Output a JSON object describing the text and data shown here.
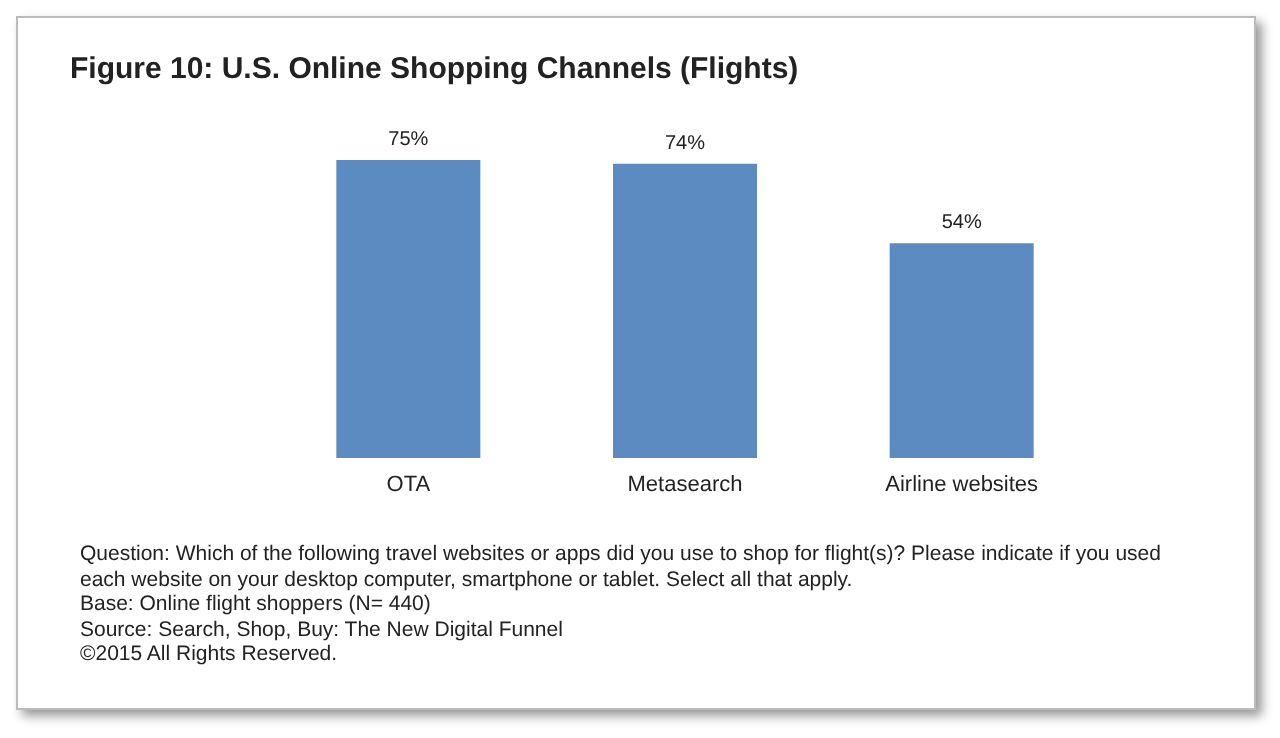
{
  "chart_data": {
    "type": "bar",
    "title": "Figure 10: U.S. Online Shopping Channels (Flights)",
    "categories": [
      "OTA",
      "Metasearch",
      "Airline websites"
    ],
    "values": [
      75,
      74,
      54
    ],
    "value_labels": [
      "75%",
      "74%",
      "54%"
    ],
    "color": "#5b8bc0",
    "annotations": [
      "Question: Which of the following travel websites or apps did you use to shop for flight(s)? Please indicate if you used each website on your desktop computer, smartphone or tablet. Select all that apply.",
      "Base: Online flight shoppers (N= 440)",
      "Source: Search, Shop, Buy: The New Digital Funnel",
      "©2015 All Rights Reserved."
    ]
  }
}
